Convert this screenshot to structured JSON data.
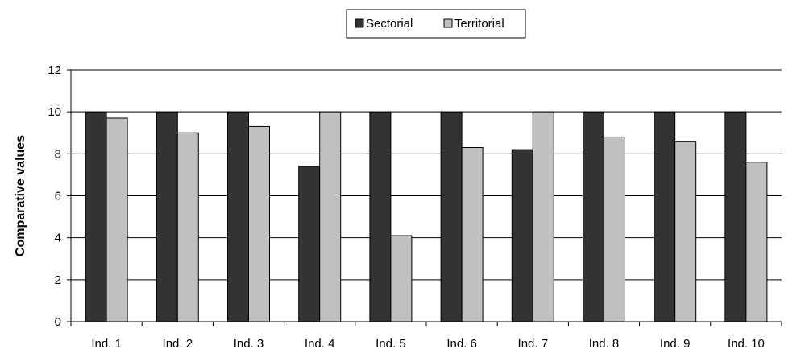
{
  "chart_data": {
    "type": "bar",
    "categories": [
      "Ind. 1",
      "Ind. 2",
      "Ind. 3",
      "Ind. 4",
      "Ind. 5",
      "Ind. 6",
      "Ind. 7",
      "Ind. 8",
      "Ind. 9",
      "Ind. 10"
    ],
    "series": [
      {
        "name": "Sectorial",
        "color": "#333333",
        "values": [
          10,
          10,
          10,
          7.4,
          10,
          10,
          8.2,
          10,
          10,
          10
        ]
      },
      {
        "name": "Territorial",
        "color": "#c0c0c0",
        "values": [
          9.7,
          9.0,
          9.3,
          10,
          4.1,
          8.3,
          10,
          8.8,
          8.6,
          7.6
        ]
      }
    ],
    "title": "",
    "xlabel": "",
    "ylabel": "Comparative values",
    "ylim": [
      0,
      12
    ],
    "yticks": [
      0,
      2,
      4,
      6,
      8,
      10,
      12
    ],
    "grid": true,
    "legend": "top-center"
  }
}
